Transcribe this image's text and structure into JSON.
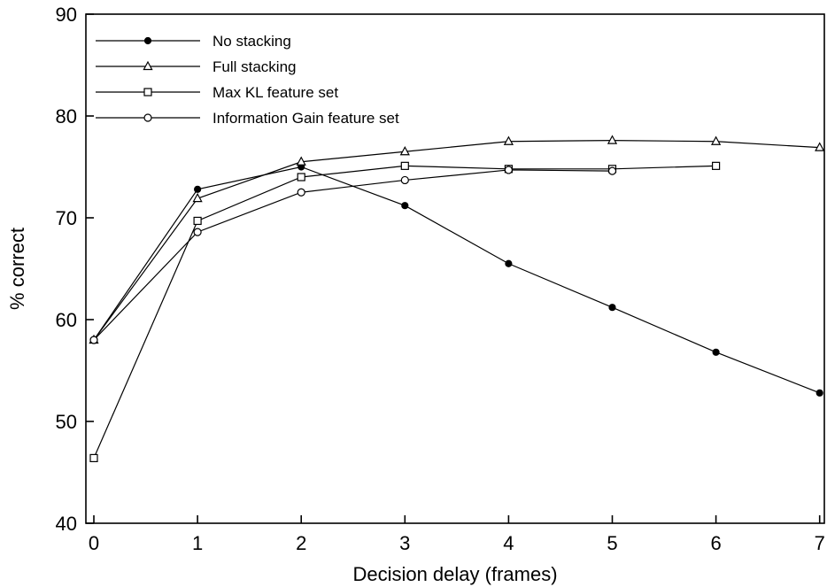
{
  "chart_data": {
    "type": "line",
    "title": "",
    "xlabel": "Decision delay (frames)",
    "ylabel": "% correct",
    "xlim": [
      0,
      7
    ],
    "ylim": [
      40,
      90
    ],
    "xticks": [
      0,
      1,
      2,
      3,
      4,
      5,
      6,
      7
    ],
    "yticks": [
      40,
      50,
      60,
      70,
      80,
      90
    ],
    "grid": false,
    "legend_position": "top-left",
    "series": [
      {
        "name": "No stacking",
        "marker": "filled-circle",
        "x": [
          0,
          1,
          2,
          3,
          4,
          5,
          6,
          7
        ],
        "y": [
          58.0,
          72.8,
          75.0,
          71.2,
          65.5,
          61.2,
          56.8,
          52.8
        ]
      },
      {
        "name": "Full stacking",
        "marker": "open-triangle",
        "x": [
          0,
          1,
          2,
          3,
          4,
          5,
          6,
          7
        ],
        "y": [
          58.0,
          71.9,
          75.5,
          76.5,
          77.5,
          77.6,
          77.5,
          76.9
        ]
      },
      {
        "name": "Max KL feature set",
        "marker": "open-square",
        "x": [
          0,
          1,
          2,
          3,
          4,
          5,
          6
        ],
        "y": [
          46.4,
          69.7,
          74.0,
          75.1,
          74.8,
          74.8,
          75.1
        ]
      },
      {
        "name": "Information Gain feature set",
        "marker": "open-circle",
        "x": [
          0,
          1,
          2,
          3,
          4,
          5
        ],
        "y": [
          58.0,
          68.6,
          72.5,
          73.7,
          74.7,
          74.6
        ]
      }
    ]
  }
}
